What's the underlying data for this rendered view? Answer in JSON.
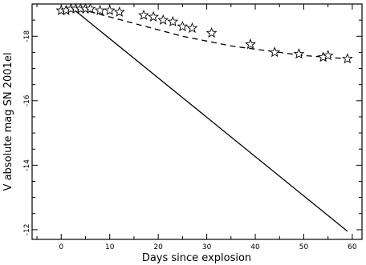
{
  "chart_data": {
    "type": "scatter",
    "xlabel": "Days since explosion",
    "ylabel": "V absolute mag SN 2001el",
    "xlim": [
      -6,
      62
    ],
    "ylim": [
      -11.7,
      -19.0
    ],
    "x_ticks": [
      0,
      10,
      20,
      30,
      40,
      50,
      60
    ],
    "x_tick_labels": [
      "0",
      "10",
      "20",
      "30",
      "40",
      "50",
      "60"
    ],
    "y_ticks": [
      -18,
      -16,
      -14,
      -12
    ],
    "y_tick_labels": [
      "-18",
      "-16",
      "-14",
      "-12"
    ],
    "series": [
      {
        "marker": "open-star",
        "points": [
          [
            0,
            -18.8
          ],
          [
            1,
            -18.8
          ],
          [
            2,
            -18.85
          ],
          [
            3,
            -18.85
          ],
          [
            4,
            -18.85
          ],
          [
            5,
            -18.85
          ],
          [
            6,
            -18.85
          ],
          [
            8,
            -18.8
          ],
          [
            10,
            -18.8
          ],
          [
            12,
            -18.75
          ],
          [
            17,
            -18.65
          ],
          [
            19,
            -18.6
          ],
          [
            21,
            -18.5
          ],
          [
            23,
            -18.45
          ],
          [
            25,
            -18.3
          ],
          [
            27,
            -18.25
          ],
          [
            31,
            -18.1
          ],
          [
            39,
            -17.75
          ],
          [
            44,
            -17.5
          ],
          [
            49,
            -17.45
          ],
          [
            54,
            -17.35
          ],
          [
            55,
            -17.4
          ],
          [
            59,
            -17.3
          ]
        ]
      },
      {
        "style": "dashed",
        "points": [
          [
            2,
            -18.9
          ],
          [
            5,
            -18.8
          ],
          [
            10,
            -18.6
          ],
          [
            15,
            -18.4
          ],
          [
            20,
            -18.2
          ],
          [
            25,
            -18.0
          ],
          [
            30,
            -17.85
          ],
          [
            35,
            -17.7
          ],
          [
            40,
            -17.6
          ],
          [
            45,
            -17.5
          ],
          [
            50,
            -17.4
          ],
          [
            55,
            -17.35
          ],
          [
            59,
            -17.3
          ]
        ]
      },
      {
        "style": "solid",
        "points": [
          [
            2,
            -18.9
          ],
          [
            59,
            -11.95
          ]
        ]
      }
    ]
  }
}
